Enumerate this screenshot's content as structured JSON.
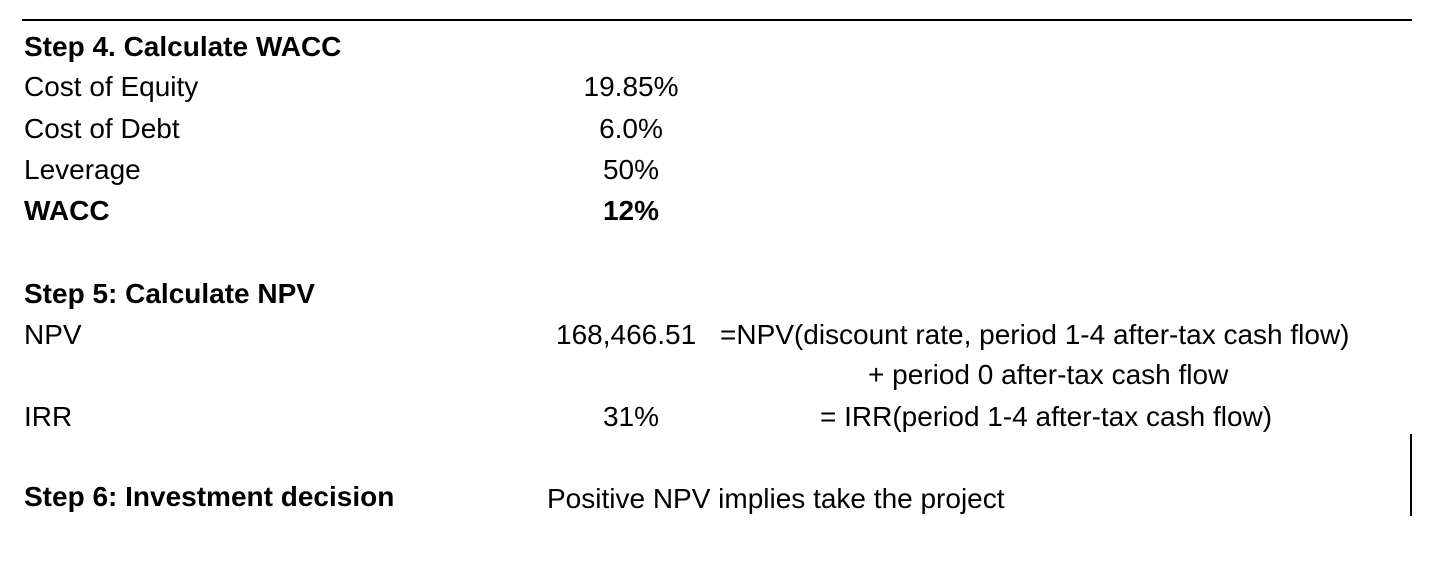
{
  "step4": {
    "heading": "Step 4. Calculate WACC",
    "rows": [
      {
        "label": "Cost of Equity",
        "value": "19.85%"
      },
      {
        "label": "Cost of Debt",
        "value": "6.0%"
      },
      {
        "label": "Leverage",
        "value": "50%"
      },
      {
        "label": "WACC",
        "value": "12%"
      }
    ]
  },
  "step5": {
    "heading": "Step 5: Calculate NPV",
    "npv": {
      "label": "NPV",
      "value": "168,466.51",
      "formula_line1": "=NPV(discount rate, period 1-4 after-tax cash flow)",
      "formula_line2": "+ period 0 after-tax cash flow"
    },
    "irr": {
      "label": "IRR",
      "value": "31%",
      "formula": "= IRR(period 1-4 after-tax cash flow)"
    }
  },
  "step6": {
    "heading": "Step 6: Investment decision",
    "decision": "Positive NPV implies take the project"
  }
}
